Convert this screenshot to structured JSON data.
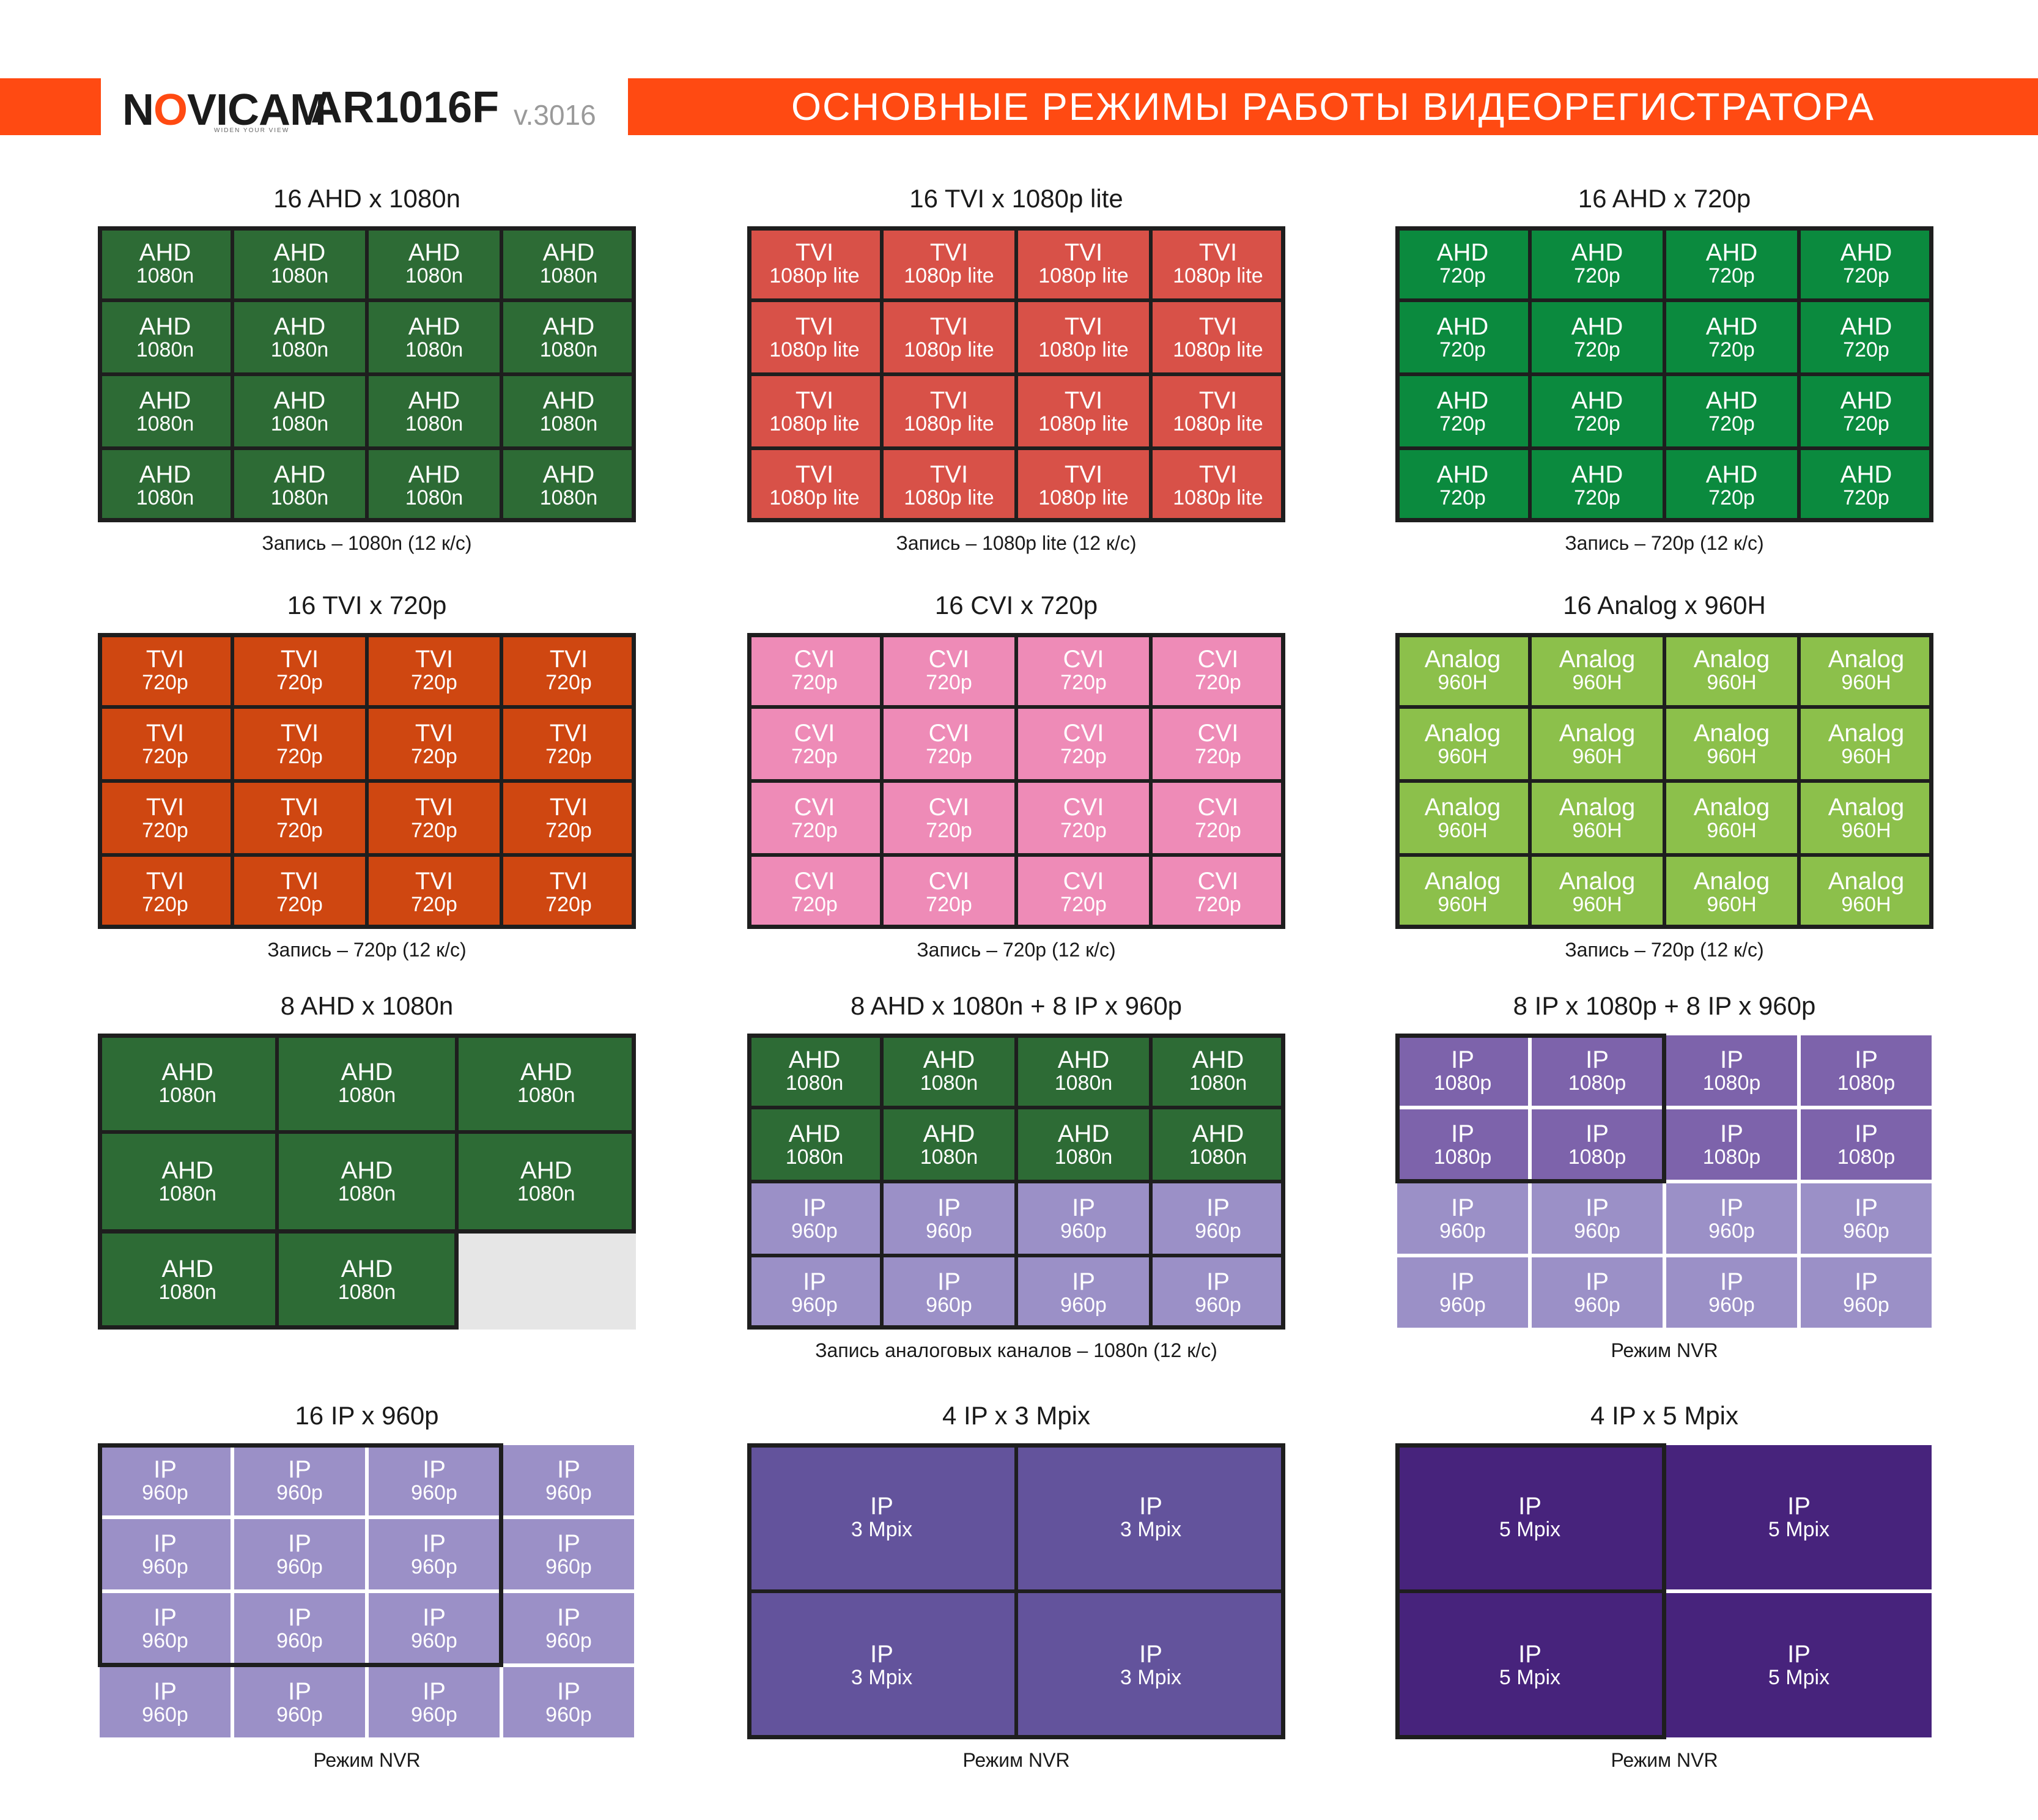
{
  "header": {
    "brand": "NOVICAM",
    "tagline": "WIDEN YOUR VIEW",
    "model": "AR1016F",
    "version": "v.3016",
    "title": "ОСНОВНЫЕ РЕЖИМЫ РАБОТЫ ВИДЕОРЕГИСТРАТОРА"
  },
  "colors": {
    "accent": "#ff4a12",
    "ahd_1080n": "#2d6b35",
    "tvi_1080p_lite": "#d85148",
    "ahd_720p": "#0b8a3e",
    "tvi_720p": "#cf4711",
    "cvi_720p": "#ee8bb7",
    "analog_960h": "#8cc04b",
    "ip_960p": "#9b90c7",
    "ip_1080p": "#7d63ab",
    "ip_3mpix": "#63539c",
    "ip_5mpix": "#47237c",
    "empty_slot": "#e6e6e6"
  },
  "panels": [
    {
      "title": "16 AHD x 1080n",
      "note": "Запись – 1080n (12 к/с)",
      "groups": [
        {
          "rows": 4,
          "cols": 4,
          "label": "AHD",
          "sub": "1080n",
          "color": "#2d6b35"
        }
      ]
    },
    {
      "title": "16 TVI x 1080p lite",
      "note": "Запись – 1080p lite (12 к/с)",
      "groups": [
        {
          "rows": 4,
          "cols": 4,
          "label": "TVI",
          "sub": "1080p lite",
          "color": "#d85148"
        }
      ]
    },
    {
      "title": "16 AHD x 720p",
      "note": "Запись – 720p (12 к/с)",
      "groups": [
        {
          "rows": 4,
          "cols": 4,
          "label": "AHD",
          "sub": "720p",
          "color": "#0b8a3e"
        }
      ]
    },
    {
      "title": "16 TVI x 720p",
      "note": "Запись – 720p (12 к/с)",
      "groups": [
        {
          "rows": 4,
          "cols": 4,
          "label": "TVI",
          "sub": "720p",
          "color": "#cf4711"
        }
      ]
    },
    {
      "title": "16 CVI x 720p",
      "note": "Запись – 720p (12 к/с)",
      "groups": [
        {
          "rows": 4,
          "cols": 4,
          "label": "CVI",
          "sub": "720p",
          "color": "#ee8bb7"
        }
      ]
    },
    {
      "title": "16 Analog x 960H",
      "note": "Запись – 720p (12 к/с)",
      "groups": [
        {
          "rows": 4,
          "cols": 4,
          "label": "Analog",
          "sub": "960H",
          "color": "#8cc04b"
        }
      ]
    },
    {
      "title": "8 AHD x 1080n",
      "note": "",
      "groups": [
        {
          "rows": 3,
          "cols": 3,
          "count": 8,
          "label": "AHD",
          "sub": "1080n",
          "color": "#2d6b35",
          "empty": "#e6e6e6"
        }
      ]
    },
    {
      "title": "8 AHD x 1080n + 8 IP x 960p",
      "note": "Запись аналоговых каналов – 1080n (12 к/с)",
      "groups": [
        {
          "rows": 2,
          "cols": 4,
          "label": "AHD",
          "sub": "1080n",
          "color": "#2d6b35"
        },
        {
          "rows": 2,
          "cols": 4,
          "label": "IP",
          "sub": "960p",
          "color": "#9b90c7"
        }
      ]
    },
    {
      "title": "8 IP x 1080p + 8 IP x 960p",
      "note": "Режим NVR",
      "groups": [
        {
          "rows": 2,
          "cols": 4,
          "label": "IP",
          "sub": "1080p",
          "color": "#7d63ab"
        },
        {
          "rows": 2,
          "cols": 4,
          "label": "IP",
          "sub": "960p",
          "color": "#9b90c7"
        }
      ]
    },
    {
      "title": "16 IP x 960p",
      "note": "Режим NVR",
      "groups": [
        {
          "rows": 4,
          "cols": 4,
          "label": "IP",
          "sub": "960p",
          "color": "#9b90c7"
        }
      ]
    },
    {
      "title": "4 IP x 3 Mpix",
      "note": "Режим NVR",
      "groups": [
        {
          "rows": 2,
          "cols": 2,
          "label": "IP",
          "sub": "3 Mpix",
          "color": "#63539c"
        }
      ]
    },
    {
      "title": "4 IP x 5 Mpix",
      "note": "Режим NVR",
      "groups": [
        {
          "rows": 2,
          "cols": 2,
          "label": "IP",
          "sub": "5 Mpix",
          "color": "#47237c"
        }
      ]
    }
  ]
}
